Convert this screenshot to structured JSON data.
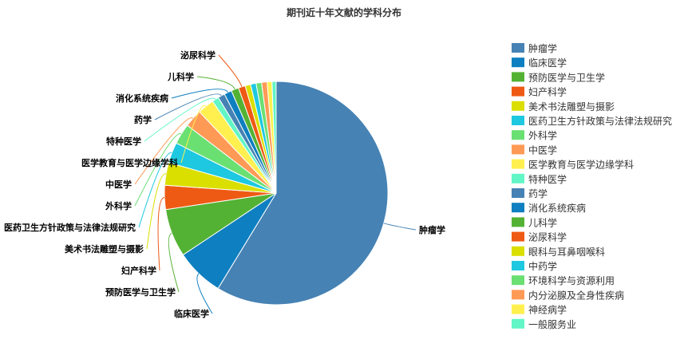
{
  "chart_data": {
    "type": "pie",
    "title": "期刊近十年文献的学科分布",
    "legend_position": "right",
    "slices": [
      {
        "name": "肿瘤学",
        "value": 59.0,
        "color": "#4682B4",
        "show_label": true
      },
      {
        "name": "临床医学",
        "value": 7.0,
        "color": "#0E7FC0",
        "show_label": true
      },
      {
        "name": "预防医学与卫生学",
        "value": 7.0,
        "color": "#53B234",
        "show_label": true
      },
      {
        "name": "妇产科学",
        "value": 3.5,
        "color": "#EE5A14",
        "show_label": true
      },
      {
        "name": "美术书法雕塑与摄影",
        "value": 3.3,
        "color": "#DADF00",
        "show_label": true
      },
      {
        "name": "医药卫生方针政策与法律法规研究",
        "value": 3.0,
        "color": "#1EC8E0",
        "show_label": true
      },
      {
        "name": "外科学",
        "value": 3.0,
        "color": "#6AE072",
        "show_label": true
      },
      {
        "name": "中医学",
        "value": 2.6,
        "color": "#FF9A56",
        "show_label": true
      },
      {
        "name": "医学教育与医学边缘学科",
        "value": 2.4,
        "color": "#FFF050",
        "show_label": true
      },
      {
        "name": "特种医学",
        "value": 1.0,
        "color": "#62F5C5",
        "show_label": true
      },
      {
        "name": "药学",
        "value": 1.0,
        "color": "#4682B4",
        "show_label": true
      },
      {
        "name": "消化系统疾病",
        "value": 1.1,
        "color": "#0E7FC0",
        "show_label": true
      },
      {
        "name": "儿科学",
        "value": 1.1,
        "color": "#53B234",
        "show_label": true
      },
      {
        "name": "泌尿科学",
        "value": 1.0,
        "color": "#EE5A14",
        "show_label": true
      },
      {
        "name": "眼科与耳鼻咽喉科",
        "value": 0.8,
        "color": "#DADF00",
        "show_label": false
      },
      {
        "name": "中药学",
        "value": 0.8,
        "color": "#1EC8E0",
        "show_label": false
      },
      {
        "name": "环境科学与资源利用",
        "value": 0.8,
        "color": "#6AE072",
        "show_label": false
      },
      {
        "name": "内分泌腺及全身性疾病",
        "value": 0.8,
        "color": "#FF9A56",
        "show_label": false
      },
      {
        "name": "神经病学",
        "value": 0.7,
        "color": "#FFF050",
        "show_label": false
      },
      {
        "name": "一般服务业",
        "value": 0.6,
        "color": "#62F5C5",
        "show_label": false
      }
    ]
  }
}
